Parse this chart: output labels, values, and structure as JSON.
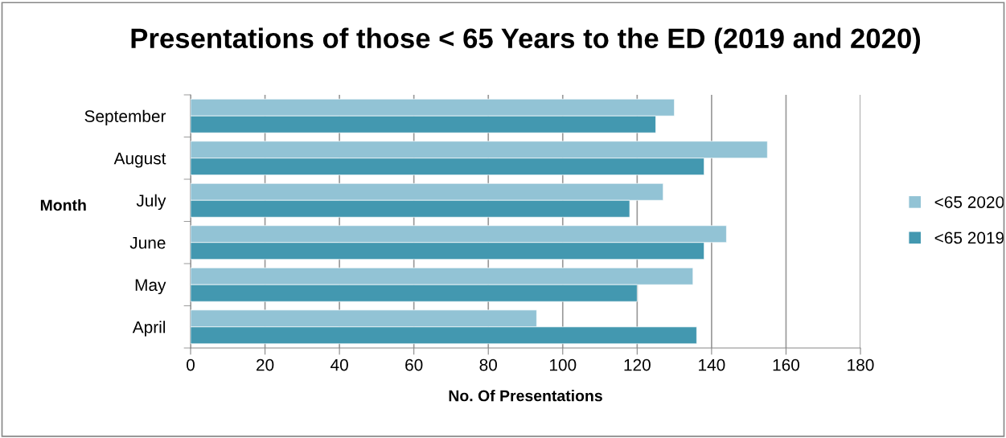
{
  "chart_data": {
    "type": "bar",
    "orientation": "horizontal",
    "title": "Presentations of those < 65 Years to the ED (2019 and 2020)",
    "xlabel": "No. Of Presentations",
    "ylabel": "Month",
    "categories": [
      "September",
      "August",
      "July",
      "June",
      "May",
      "April"
    ],
    "series": [
      {
        "name": "<65 2020",
        "color": "#92c3d5",
        "values": [
          130,
          155,
          127,
          144,
          135,
          93
        ]
      },
      {
        "name": "<65 2019",
        "color": "#4398b0",
        "values": [
          125,
          138,
          118,
          138,
          120,
          136
        ]
      }
    ],
    "xlim": [
      0,
      180
    ],
    "xticks": [
      0,
      20,
      40,
      60,
      80,
      100,
      120,
      140,
      160,
      180
    ],
    "grid": "x",
    "legend": "right"
  }
}
